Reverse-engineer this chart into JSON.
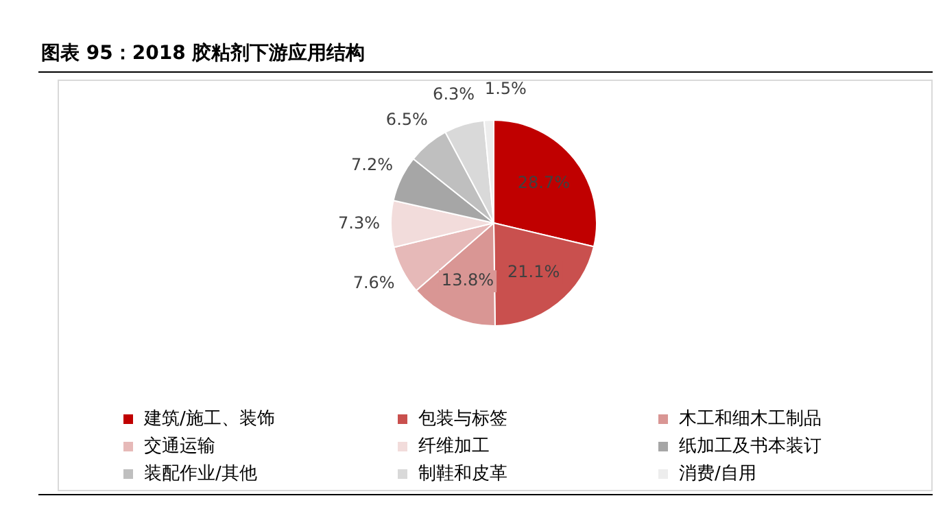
{
  "chart_data": {
    "type": "pie",
    "title": "图表 95：2018 胶粘剂下游应用结构",
    "categories": [
      "建筑/施工、装饰",
      "包装与标签",
      "木工和细木工制品",
      "交通运输",
      "纤维加工",
      "纸加工及书本装订",
      "装配作业/其他",
      "制鞋和皮革",
      "消费/自用"
    ],
    "values": [
      28.7,
      21.1,
      13.8,
      7.6,
      7.3,
      7.2,
      6.5,
      6.3,
      1.5
    ],
    "colors": [
      "#c00000",
      "#c9504e",
      "#d99694",
      "#e6b9b8",
      "#f2dcdb",
      "#a6a6a6",
      "#bfbfbf",
      "#d9d9d9",
      "#ededed"
    ],
    "value_labels": [
      "28.7%",
      "21.1%",
      "13.8%",
      "7.6%",
      "7.3%",
      "7.2%",
      "6.5%",
      "6.3%",
      "1.5%"
    ],
    "legend": "bottom"
  }
}
